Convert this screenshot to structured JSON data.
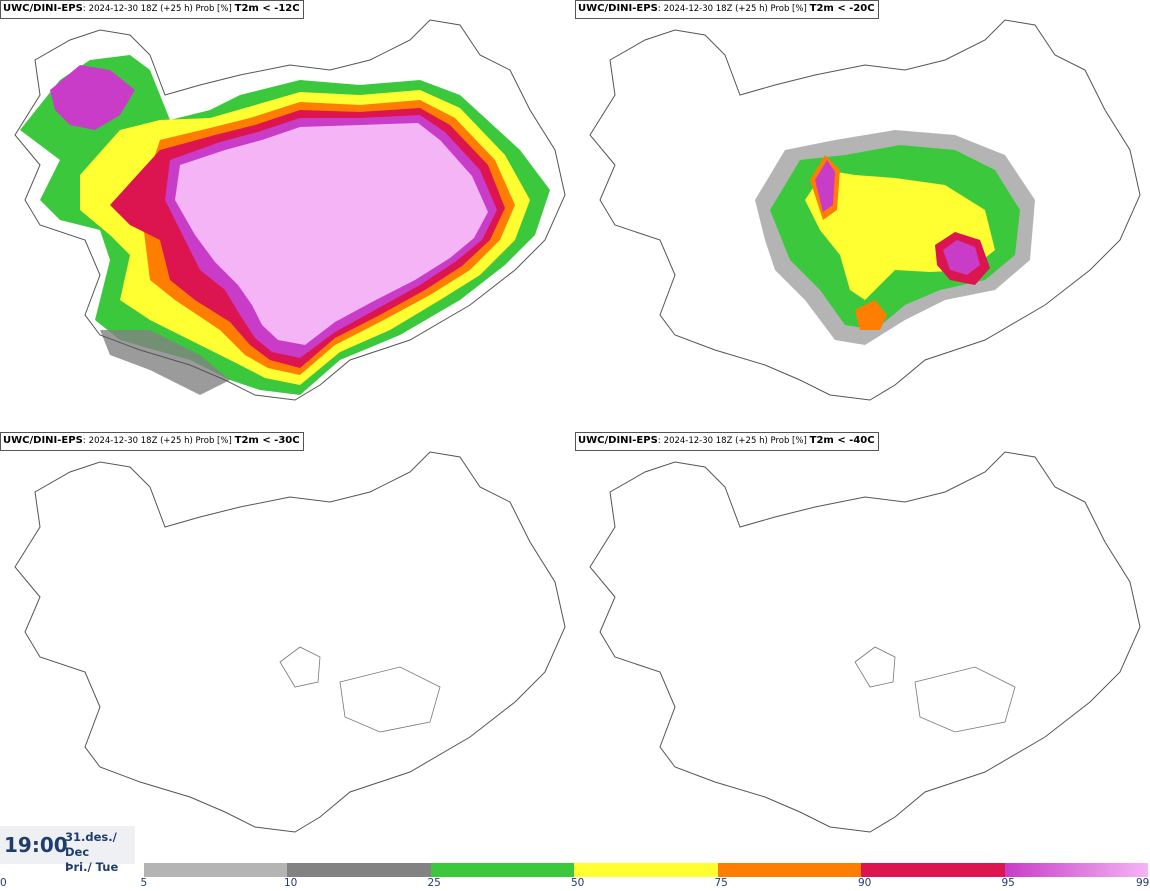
{
  "panels": [
    {
      "model": "UWC/DINI-EPS",
      "run": "2024-12-30 18Z (+25 h) Prob [%]",
      "threshold": "T2m < -12C"
    },
    {
      "model": "UWC/DINI-EPS",
      "run": "2024-12-30 18Z (+25 h) Prob [%]",
      "threshold": "T2m < -20C"
    },
    {
      "model": "UWC/DINI-EPS",
      "run": "2024-12-30 18Z (+25 h) Prob [%]",
      "threshold": "T2m < -30C"
    },
    {
      "model": "UWC/DINI-EPS",
      "run": "2024-12-30 18Z (+25 h) Prob [%]",
      "threshold": "T2m < -40C"
    }
  ],
  "time": {
    "clock": "19:00",
    "date_line1": "31.des./ Dec",
    "date_line2": "Þri./ Tue"
  },
  "legend": {
    "ticks": [
      "0",
      "5",
      "10",
      "25",
      "50",
      "75",
      "90",
      "95",
      "99"
    ],
    "colors": [
      "#ffffff",
      "#b4b4b4",
      "#828282",
      "#3cc83c",
      "#ffff32",
      "#ff7d00",
      "#dc1450",
      "#c83cc8",
      "#f5b4f5"
    ]
  }
}
